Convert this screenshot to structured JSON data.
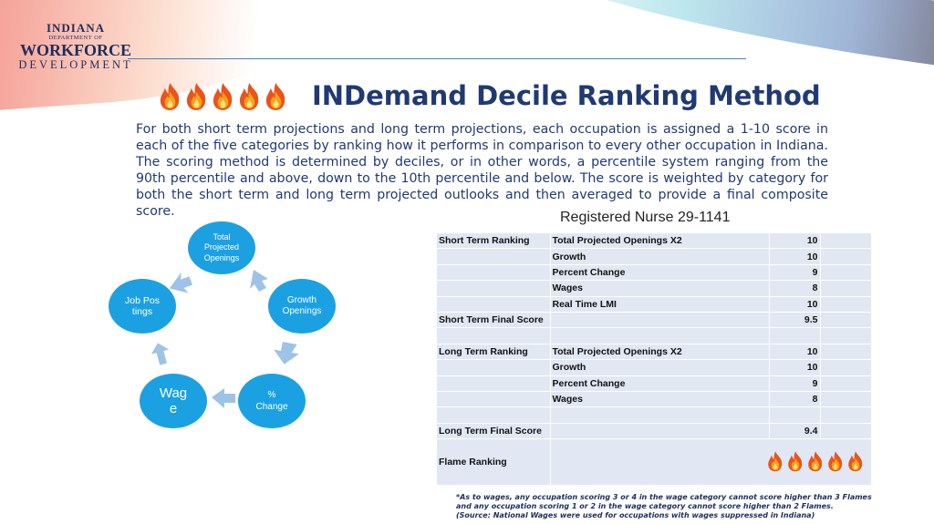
{
  "logo": {
    "line1": "INDIANA",
    "line2": "DEPARTMENT OF",
    "line3": "WORKFORCE",
    "line4": "DEVELOPMENT"
  },
  "title": "INDemand Decile Ranking Method",
  "intro": "For both short term projections and long term projections, each occupation is assigned a 1-10 score in each of the five categories by ranking how it performs in comparison to every other occupation in Indiana. The scoring method is determined by deciles, or in other words, a percentile system ranging from the 90th percentile and above, down to the 10th percentile and below. The score is weighted by category for both the short term and long term projected outlooks and then averaged to provide a final composite score.",
  "cycle": {
    "nodes": [
      {
        "label": "Total Projected Openings"
      },
      {
        "label": "Growth Openings"
      },
      {
        "label": "% Change"
      },
      {
        "label": "Wage"
      },
      {
        "label": "Job Postings"
      }
    ]
  },
  "table": {
    "title": "Registered Nurse 29-1141",
    "rows": [
      {
        "a": "Short Term Ranking",
        "b": "Total Projected Openings X2",
        "c": "10"
      },
      {
        "a": "",
        "b": "Growth",
        "c": "10"
      },
      {
        "a": "",
        "b": "Percent Change",
        "c": "9"
      },
      {
        "a": "",
        "b": "Wages",
        "c": "8"
      },
      {
        "a": "",
        "b": "Real Time LMI",
        "c": "10"
      },
      {
        "a": "Short Term Final Score",
        "b": "",
        "c": "9.5"
      },
      {
        "a": "",
        "b": "",
        "c": ""
      },
      {
        "a": "Long Term Ranking",
        "b": "Total Projected Openings X2",
        "c": "10"
      },
      {
        "a": "",
        "b": "Growth",
        "c": "10"
      },
      {
        "a": "",
        "b": "Percent Change",
        "c": "9"
      },
      {
        "a": "",
        "b": "Wages",
        "c": "8"
      },
      {
        "a": "",
        "b": "",
        "c": ""
      },
      {
        "a": "Long Term Final Score",
        "b": "",
        "c": "9.4"
      }
    ],
    "flame_label": "Flame Ranking",
    "flame_count": 5
  },
  "notes": {
    "line1": "*As to wages, any occupation scoring 3 or 4 in the wage category cannot score higher than 3 Flames and any occupation scoring 1 or 2 in the wage category cannot score higher than 2 Flames.",
    "line2": "(Source: National Wages were used for occupations with wages suppressed in Indiana)"
  },
  "colors": {
    "node": "#1ba1e2",
    "arrow": "#9dc3e6",
    "title": "#1f3a73",
    "table_fill": "#e1e8f4"
  }
}
